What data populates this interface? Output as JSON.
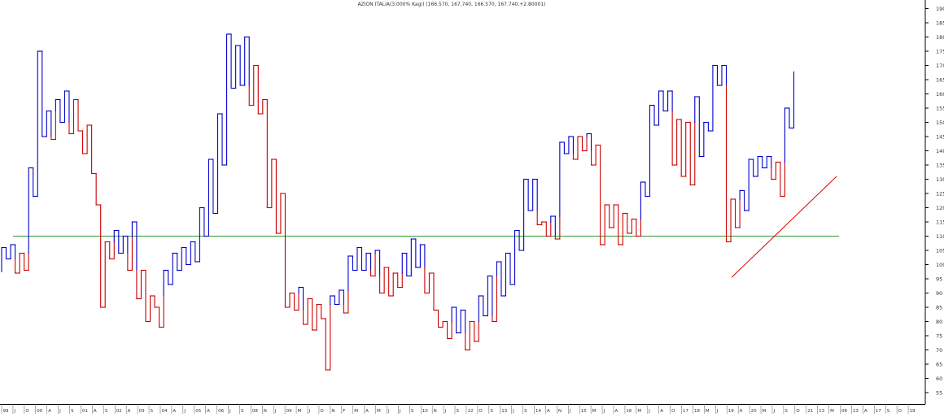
{
  "chart_data": {
    "type": "line",
    "title": "AZION ITALIA(3.000% Kagi) (166.570, 167.740, 166.570, 167.740,+2.80001)",
    "xlabel": "",
    "ylabel": "",
    "ylim": [
      51,
      193
    ],
    "yticks": [
      55,
      60,
      65,
      70,
      75,
      80,
      85,
      90,
      95,
      100,
      105,
      110,
      115,
      120,
      125,
      130,
      135,
      140,
      145,
      150,
      155,
      160,
      165,
      170,
      175,
      180,
      185,
      190
    ],
    "xticks": [
      "99",
      "J",
      "O",
      "00",
      "A",
      "J",
      "S",
      "01",
      "A",
      "S",
      "02",
      "A",
      "03",
      "S",
      "04",
      "A",
      "J",
      "05",
      "A",
      "06",
      "J",
      "S",
      "08",
      "N",
      "J",
      "09",
      "M",
      "J",
      "O",
      "N",
      "F",
      "M",
      "A",
      "M",
      "J",
      "J",
      "S",
      "10",
      "N",
      "J",
      "S",
      "12",
      "O",
      "S",
      "13",
      "J",
      "S",
      "14",
      "A",
      "N",
      "J",
      "15",
      "M",
      "J",
      "A",
      "16",
      "M",
      "J",
      "A",
      "O",
      "17",
      "18",
      "M",
      "J",
      "19",
      "A",
      "20",
      "M",
      "J",
      "S",
      "O",
      "21",
      "13",
      "M",
      "08",
      "13",
      "A",
      "17",
      "S",
      "O",
      "19"
    ],
    "line_colors": {
      "up": "#0000cc",
      "down": "#cc0000",
      "support": "#2e9c2e",
      "trend": "#dd0000"
    },
    "kagi": {
      "start": 97.5,
      "turns": [
        106,
        102,
        107,
        97,
        104,
        98,
        134,
        124,
        175,
        145,
        154,
        144,
        158,
        150,
        161,
        146,
        158,
        147,
        139,
        149,
        132,
        121,
        85,
        108,
        102,
        112,
        104,
        110,
        98,
        115,
        88,
        98,
        80,
        89,
        85,
        78,
        98,
        93,
        104,
        98,
        106,
        100,
        108,
        101,
        120,
        110,
        137,
        118,
        153,
        135,
        181,
        162,
        177,
        163,
        180,
        156,
        170,
        153,
        158,
        120,
        137,
        111,
        125,
        85,
        90,
        84,
        92,
        79,
        88,
        77,
        86,
        81,
        63,
        89,
        86,
        91,
        83,
        103,
        98,
        106,
        98,
        104,
        96,
        105,
        90,
        99,
        89,
        97,
        92,
        104,
        96,
        109,
        99,
        107,
        90,
        97,
        84,
        78,
        80,
        74,
        85,
        76,
        84,
        70,
        80,
        73,
        89,
        82,
        96,
        80,
        101,
        89,
        104,
        93,
        112,
        105,
        130,
        119,
        130,
        114,
        115,
        110,
        117,
        109,
        143,
        139,
        145,
        137,
        145,
        140,
        146,
        135,
        142,
        107,
        121,
        113,
        121,
        107,
        118,
        111,
        116,
        110,
        129,
        124,
        156,
        149,
        161,
        154,
        161,
        135,
        151,
        131,
        150,
        128,
        159,
        138,
        150,
        147,
        170,
        163,
        170,
        108,
        123,
        113,
        126,
        119,
        137,
        131,
        138,
        134,
        138,
        130,
        136,
        124,
        155,
        148,
        167.74
      ],
      "x_start": 2,
      "x_end": 981
    },
    "support_line": {
      "y": 110,
      "x_start": 16,
      "x_end": 1031
    },
    "trend_line": {
      "y1": 95.5,
      "y2": 131,
      "x1": 899,
      "x2": 1028
    }
  }
}
